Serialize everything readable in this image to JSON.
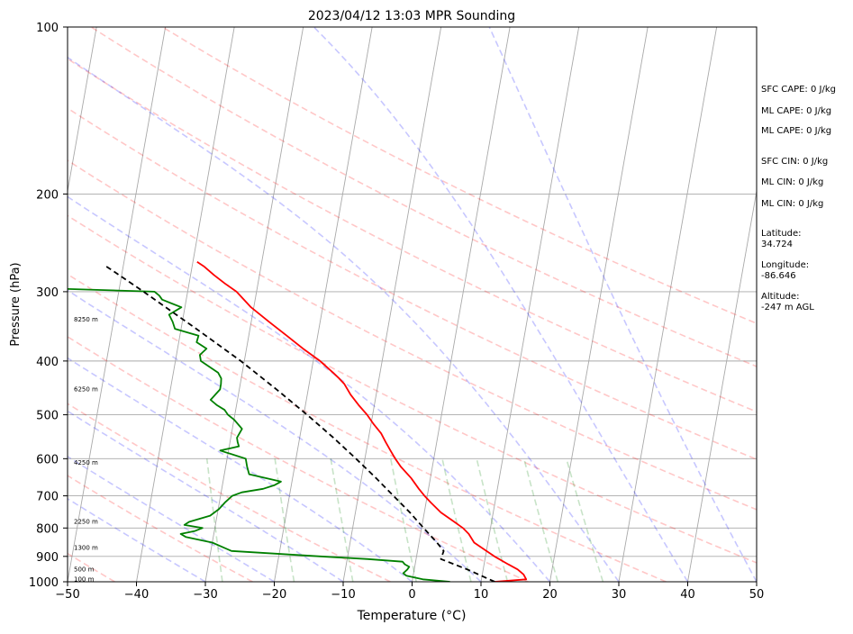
{
  "chart_data": {
    "type": "line",
    "subtype": "skew-t log-p sounding",
    "title": "2023/04/12 13:03 MPR Sounding",
    "xlabel": "Temperature (°C)",
    "ylabel": "Pressure (hPa)",
    "xlim": [
      -50,
      50
    ],
    "ylim": [
      1000,
      100
    ],
    "y_scale": "log",
    "grid": true,
    "x_ticks": [
      "−50",
      "−40",
      "−30",
      "−20",
      "−10",
      "0",
      "10",
      "20",
      "30",
      "40",
      "50"
    ],
    "y_ticks": [
      "1000",
      "900",
      "800",
      "700",
      "600",
      "500",
      "400",
      "300",
      "200",
      "100"
    ],
    "height_labels": [
      {
        "text": "100 m",
        "p": 990
      },
      {
        "text": "500 m",
        "p": 950
      },
      {
        "text": "1300 m",
        "p": 870
      },
      {
        "text": "2250 m",
        "p": 780
      },
      {
        "text": "4250 m",
        "p": 610
      },
      {
        "text": "6250 m",
        "p": 450
      },
      {
        "text": "8250 m",
        "p": 337
      }
    ],
    "series": [
      {
        "role": "temperature",
        "color": "#ff0000",
        "points": [
          [
            1000,
            12
          ],
          [
            990,
            16.5
          ],
          [
            970,
            16
          ],
          [
            950,
            15
          ],
          [
            930,
            13.5
          ],
          [
            900,
            11.3
          ],
          [
            880,
            10
          ],
          [
            850,
            8
          ],
          [
            820,
            7
          ],
          [
            800,
            6
          ],
          [
            780,
            4.6
          ],
          [
            750,
            2.4
          ],
          [
            720,
            0.7
          ],
          [
            700,
            -0.4
          ],
          [
            680,
            -1.4
          ],
          [
            650,
            -2.8
          ],
          [
            620,
            -4.6
          ],
          [
            600,
            -5.6
          ],
          [
            580,
            -6.5
          ],
          [
            560,
            -7.4
          ],
          [
            540,
            -8.3
          ],
          [
            520,
            -9.6
          ],
          [
            500,
            -10.8
          ],
          [
            480,
            -12.3
          ],
          [
            460,
            -13.7
          ],
          [
            440,
            -14.9
          ],
          [
            430,
            -15.8
          ],
          [
            420,
            -16.8
          ],
          [
            400,
            -19
          ],
          [
            380,
            -21.8
          ],
          [
            360,
            -24.5
          ],
          [
            340,
            -27.4
          ],
          [
            320,
            -30.4
          ],
          [
            300,
            -32.9
          ],
          [
            290,
            -34.8
          ],
          [
            280,
            -36.6
          ],
          [
            270,
            -38.3
          ],
          [
            265,
            -39.4
          ]
        ]
      },
      {
        "role": "dewpoint",
        "color": "#008000",
        "points": [
          [
            1000,
            5.5
          ],
          [
            990,
            1.5
          ],
          [
            975,
            -1
          ],
          [
            965,
            -1.5
          ],
          [
            950,
            -1
          ],
          [
            940,
            -0.8
          ],
          [
            930,
            -1.5
          ],
          [
            920,
            -1.9
          ],
          [
            910,
            -7
          ],
          [
            900,
            -14
          ],
          [
            880,
            -27
          ],
          [
            850,
            -30
          ],
          [
            830,
            -34
          ],
          [
            820,
            -34.8
          ],
          [
            810,
            -32.8
          ],
          [
            800,
            -31.8
          ],
          [
            790,
            -34.5
          ],
          [
            780,
            -33.9
          ],
          [
            760,
            -31
          ],
          [
            740,
            -29.9
          ],
          [
            720,
            -29.2
          ],
          [
            700,
            -28.3
          ],
          [
            690,
            -27
          ],
          [
            680,
            -24
          ],
          [
            670,
            -22.5
          ],
          [
            660,
            -21.6
          ],
          [
            640,
            -26.4
          ],
          [
            620,
            -26.9
          ],
          [
            600,
            -27.3
          ],
          [
            580,
            -31.2
          ],
          [
            570,
            -28.6
          ],
          [
            560,
            -28.9
          ],
          [
            550,
            -29.1
          ],
          [
            530,
            -28.6
          ],
          [
            510,
            -30
          ],
          [
            500,
            -31
          ],
          [
            490,
            -31.6
          ],
          [
            480,
            -32.9
          ],
          [
            470,
            -33.9
          ],
          [
            450,
            -32.8
          ],
          [
            440,
            -32.8
          ],
          [
            430,
            -32.9
          ],
          [
            420,
            -33.5
          ],
          [
            400,
            -36.3
          ],
          [
            390,
            -36.6
          ],
          [
            380,
            -35.8
          ],
          [
            370,
            -37.4
          ],
          [
            360,
            -37.3
          ],
          [
            350,
            -40.9
          ],
          [
            340,
            -41.4
          ],
          [
            330,
            -42.1
          ],
          [
            320,
            -40.5
          ],
          [
            315,
            -42
          ],
          [
            310,
            -43.5
          ],
          [
            305,
            -44
          ],
          [
            300,
            -44.8
          ],
          [
            295,
            -63.5
          ],
          [
            294,
            -70
          ]
        ]
      },
      {
        "role": "parcel",
        "color": "#000000",
        "style": "dashed",
        "points": [
          [
            1000,
            12
          ],
          [
            950,
            7.7
          ],
          [
            910,
            3.6
          ],
          [
            880,
            3.8
          ],
          [
            850,
            2.6
          ],
          [
            800,
            0.3
          ],
          [
            750,
            -2.1
          ],
          [
            700,
            -4.9
          ],
          [
            650,
            -7.9
          ],
          [
            600,
            -11.3
          ],
          [
            550,
            -15.1
          ],
          [
            500,
            -19.5
          ],
          [
            450,
            -24.6
          ],
          [
            400,
            -30.5
          ],
          [
            350,
            -37.8
          ],
          [
            300,
            -46.4
          ],
          [
            275,
            -51.4
          ],
          [
            270,
            -52.5
          ]
        ]
      }
    ],
    "background_lines": {
      "isotherms_deg_c": [
        -120,
        -110,
        -100,
        -90,
        -80,
        -70,
        -60,
        -50,
        -40,
        -30,
        -20,
        -10,
        0,
        10,
        20,
        30,
        40,
        50
      ],
      "dry_adiabats_theta_k": [
        210,
        230,
        250,
        270,
        290,
        310,
        330,
        350,
        370,
        390,
        410,
        430
      ],
      "moist_adiabats_deg_c": [
        -30,
        -20,
        -10,
        0,
        10,
        20,
        30,
        40,
        50
      ],
      "mixing_ratios_g_per_kg": [
        0.4,
        1,
        2,
        4,
        7,
        10,
        16,
        24
      ],
      "colors": {
        "isotherm": "#a9a9a9",
        "dry_adiabat": "#ff0000",
        "moist_adiabat": "#0000ff",
        "mixing_ratio": "#008000"
      }
    }
  },
  "indices": [
    "SFC CAPE: 0 J/kg",
    "ML CAPE: 0 J/kg",
    "ML CAPE: 0 J/kg",
    "SFC CIN: 0 J/kg",
    "ML CIN: 0 J/kg",
    "ML CIN: 0 J/kg"
  ],
  "location": {
    "latitude_label": "Latitude:",
    "latitude": "34.724",
    "longitude_label": "Longitude:",
    "longitude": "-86.646",
    "altitude_label": "Altitude:",
    "altitude": "-247 m AGL"
  }
}
